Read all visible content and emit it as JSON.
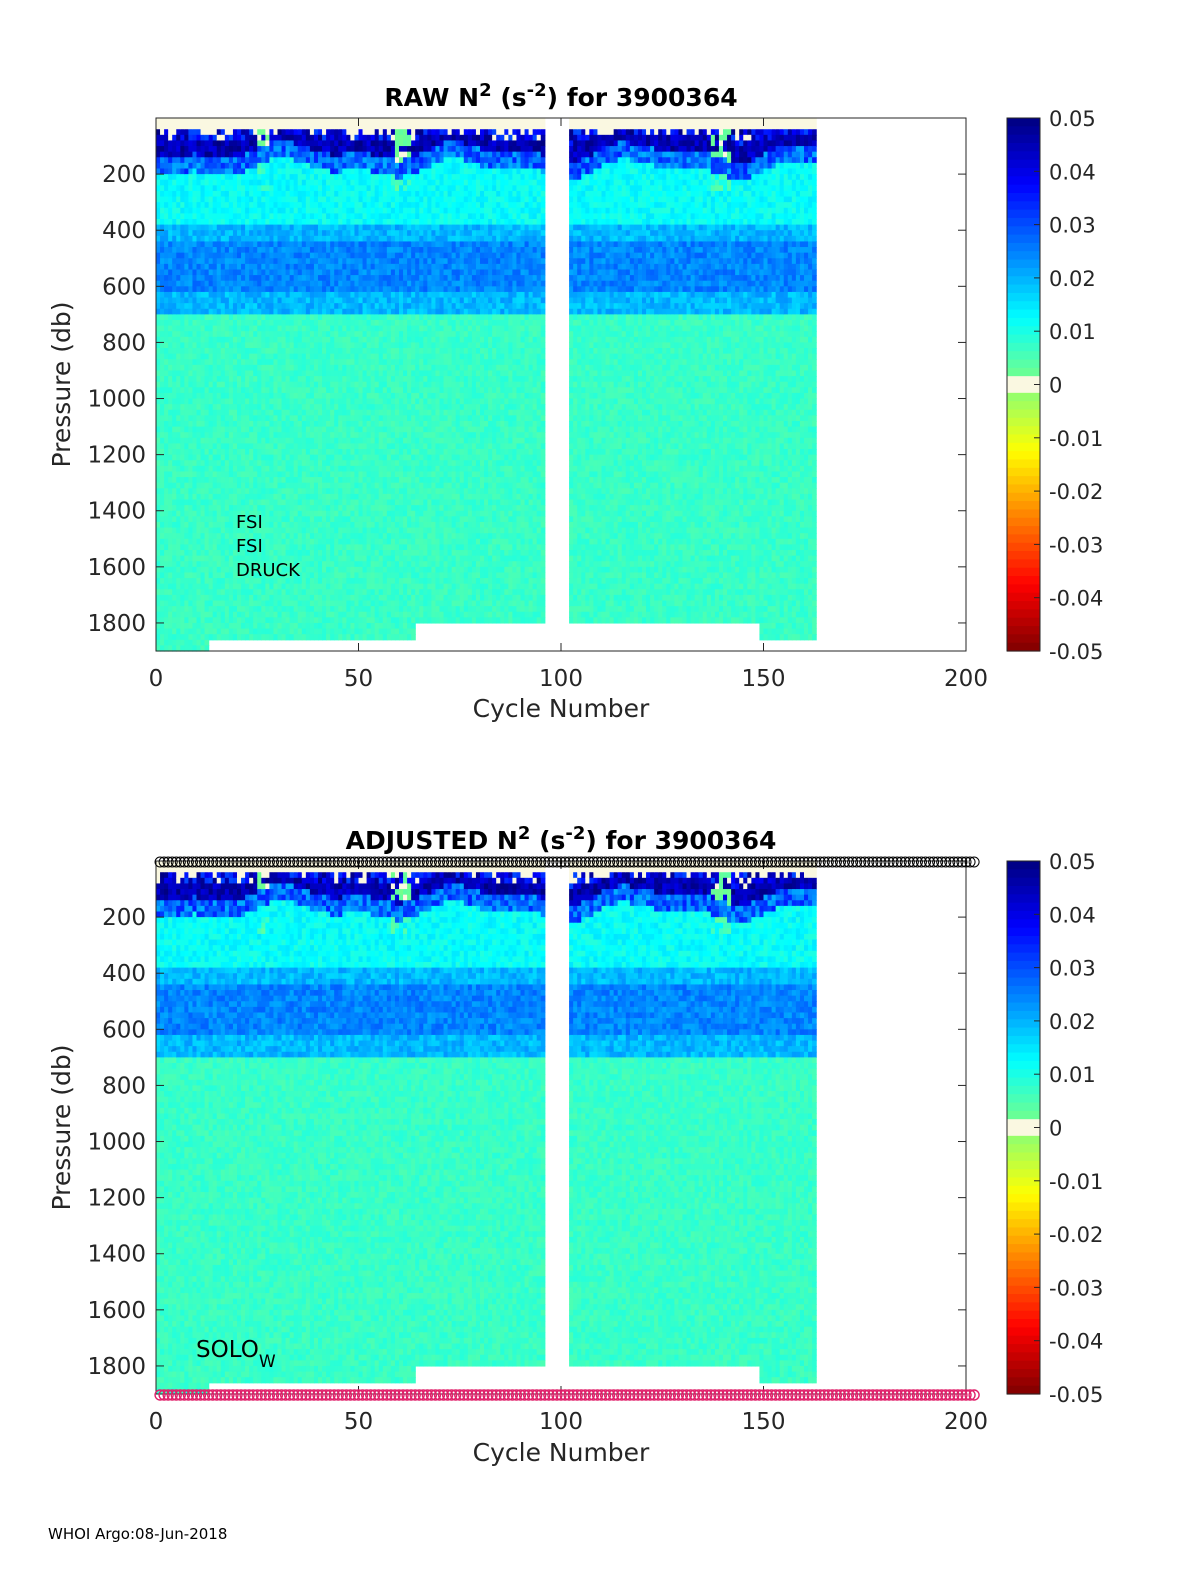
{
  "footer": "WHOI Argo:08-Jun-2018",
  "chart_data": [
    {
      "type": "heatmap",
      "title": "RAW N2 (s-2) for 3900364",
      "title_parts": {
        "prefix": "RAW N",
        "exp1": "2",
        "mid": " (s",
        "exp2": "-2",
        "suffix": ") for 3900364"
      },
      "xlabel": "Cycle Number",
      "ylabel": "Pressure (db)",
      "xlim": [
        0,
        200
      ],
      "ylim": [
        1900,
        0
      ],
      "xticks": [
        0,
        50,
        100,
        150,
        200
      ],
      "yticks": [
        200,
        400,
        600,
        800,
        1000,
        1200,
        1400,
        1600,
        1800
      ],
      "color_scale": {
        "min": -0.05,
        "max": 0.05,
        "colormap": "jet (reversed)",
        "ticks": [
          0.05,
          0.04,
          0.03,
          0.02,
          0.01,
          0,
          -0.01,
          -0.02,
          -0.03,
          -0.04,
          -0.05
        ]
      },
      "data_cycles": [
        1,
        163
      ],
      "gap_cycles": [
        97,
        102
      ],
      "sensor_labels": [
        "FSI",
        "FSI",
        "DRUCK"
      ],
      "layers": [
        {
          "pressure": [
            20,
            150
          ],
          "value_range": [
            0.0,
            0.05
          ],
          "note": "strongly stratified near surface"
        },
        {
          "pressure": [
            150,
            370
          ],
          "value_range": [
            0.008,
            0.014
          ]
        },
        {
          "pressure": [
            370,
            700
          ],
          "value_range": [
            0.018,
            0.027
          ]
        },
        {
          "pressure": [
            700,
            1880
          ],
          "value_range": [
            0.004,
            0.01
          ]
        }
      ],
      "grid": false
    },
    {
      "type": "heatmap",
      "title": "ADJUSTED N2 (s-2) for 3900364",
      "title_parts": {
        "prefix": "ADJUSTED N",
        "exp1": "2",
        "mid": " (s",
        "exp2": "-2",
        "suffix": ") for 3900364"
      },
      "xlabel": "Cycle Number",
      "ylabel": "Pressure (db)",
      "xlim": [
        0,
        200
      ],
      "ylim": [
        1900,
        0
      ],
      "xticks": [
        0,
        50,
        100,
        150,
        200
      ],
      "yticks": [
        200,
        400,
        600,
        800,
        1000,
        1200,
        1400,
        1600,
        1800
      ],
      "color_scale": {
        "min": -0.05,
        "max": 0.05,
        "colormap": "jet (reversed)",
        "ticks": [
          0.05,
          0.04,
          0.03,
          0.02,
          0.01,
          0,
          -0.01,
          -0.02,
          -0.03,
          -0.04,
          -0.05
        ]
      },
      "data_cycles": [
        1,
        163
      ],
      "gap_cycles": [
        97,
        102
      ],
      "float_label": {
        "base": "SOLO",
        "subscript": "W"
      },
      "qc_markers": {
        "top_color": "#000000",
        "bottom_color": "#e0206a",
        "cycles": [
          1,
          202
        ]
      },
      "grid": false
    }
  ]
}
